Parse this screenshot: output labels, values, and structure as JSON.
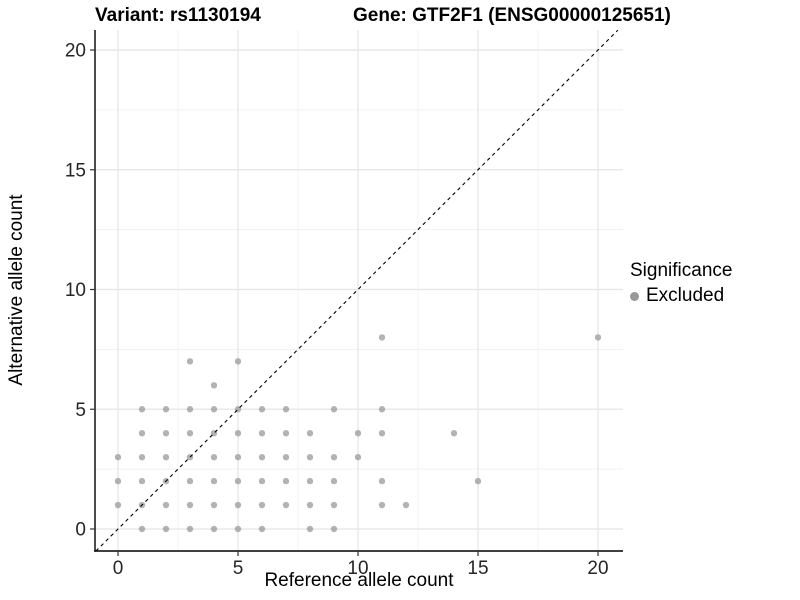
{
  "figure": {
    "title_left": "Variant: rs1130194",
    "title_right": "Gene: GTF2F1 (ENSG00000125651)"
  },
  "colors": {
    "point": "#999999",
    "grid_major": "#e4e4e4",
    "grid_minor": "#f1f1f1",
    "axis_line": "#000000",
    "tick_mark": "#333333",
    "tick_text": "#262626",
    "identity_line": "#000000",
    "background": "#ffffff"
  },
  "chart_data": {
    "type": "scatter",
    "title": "Variant: rs1130194    Gene: GTF2F1 (ENSG00000125651)",
    "xlabel": "Reference allele count",
    "ylabel": "Alternative allele count",
    "xlim": [
      -0.92,
      21.0
    ],
    "ylim": [
      -0.92,
      20.83
    ],
    "x_ticks": [
      0,
      5,
      10,
      15,
      20
    ],
    "y_ticks": [
      0,
      5,
      10,
      15,
      20
    ],
    "x_minor_ticks": [
      2.5,
      7.5,
      12.5,
      17.5
    ],
    "y_minor_ticks": [
      2.5,
      7.5,
      12.5,
      17.5
    ],
    "grid": true,
    "identity_line": {
      "equation": "y = x",
      "style": "dashed",
      "color": "#000000"
    },
    "legend": {
      "title": "Significance",
      "position": "right",
      "entries": [
        {
          "label": "Excluded",
          "color": "#999999"
        }
      ]
    },
    "series": [
      {
        "name": "Excluded",
        "color": "#999999",
        "points": [
          [
            1,
            0
          ],
          [
            2,
            0
          ],
          [
            3,
            0
          ],
          [
            4,
            0
          ],
          [
            5,
            0
          ],
          [
            6,
            0
          ],
          [
            8,
            0
          ],
          [
            9,
            0
          ],
          [
            0,
            1
          ],
          [
            1,
            1
          ],
          [
            2,
            1
          ],
          [
            3,
            1
          ],
          [
            4,
            1
          ],
          [
            5,
            1
          ],
          [
            6,
            1
          ],
          [
            7,
            1
          ],
          [
            8,
            1
          ],
          [
            9,
            1
          ],
          [
            11,
            1
          ],
          [
            12,
            1
          ],
          [
            0,
            2
          ],
          [
            1,
            2
          ],
          [
            2,
            2
          ],
          [
            3,
            2
          ],
          [
            4,
            2
          ],
          [
            5,
            2
          ],
          [
            6,
            2
          ],
          [
            7,
            2
          ],
          [
            8,
            2
          ],
          [
            9,
            2
          ],
          [
            11,
            2
          ],
          [
            15,
            2
          ],
          [
            0,
            3
          ],
          [
            1,
            3
          ],
          [
            2,
            3
          ],
          [
            3,
            3
          ],
          [
            4,
            3
          ],
          [
            5,
            3
          ],
          [
            6,
            3
          ],
          [
            7,
            3
          ],
          [
            8,
            3
          ],
          [
            9,
            3
          ],
          [
            10,
            3
          ],
          [
            1,
            4
          ],
          [
            2,
            4
          ],
          [
            3,
            4
          ],
          [
            4,
            4
          ],
          [
            5,
            4
          ],
          [
            6,
            4
          ],
          [
            7,
            4
          ],
          [
            8,
            4
          ],
          [
            10,
            4
          ],
          [
            11,
            4
          ],
          [
            14,
            4
          ],
          [
            1,
            5
          ],
          [
            2,
            5
          ],
          [
            3,
            5
          ],
          [
            4,
            5
          ],
          [
            5,
            5
          ],
          [
            6,
            5
          ],
          [
            7,
            5
          ],
          [
            9,
            5
          ],
          [
            11,
            5
          ],
          [
            4,
            6
          ],
          [
            3,
            7
          ],
          [
            5,
            7
          ],
          [
            11,
            8
          ],
          [
            20,
            8
          ]
        ]
      }
    ]
  }
}
